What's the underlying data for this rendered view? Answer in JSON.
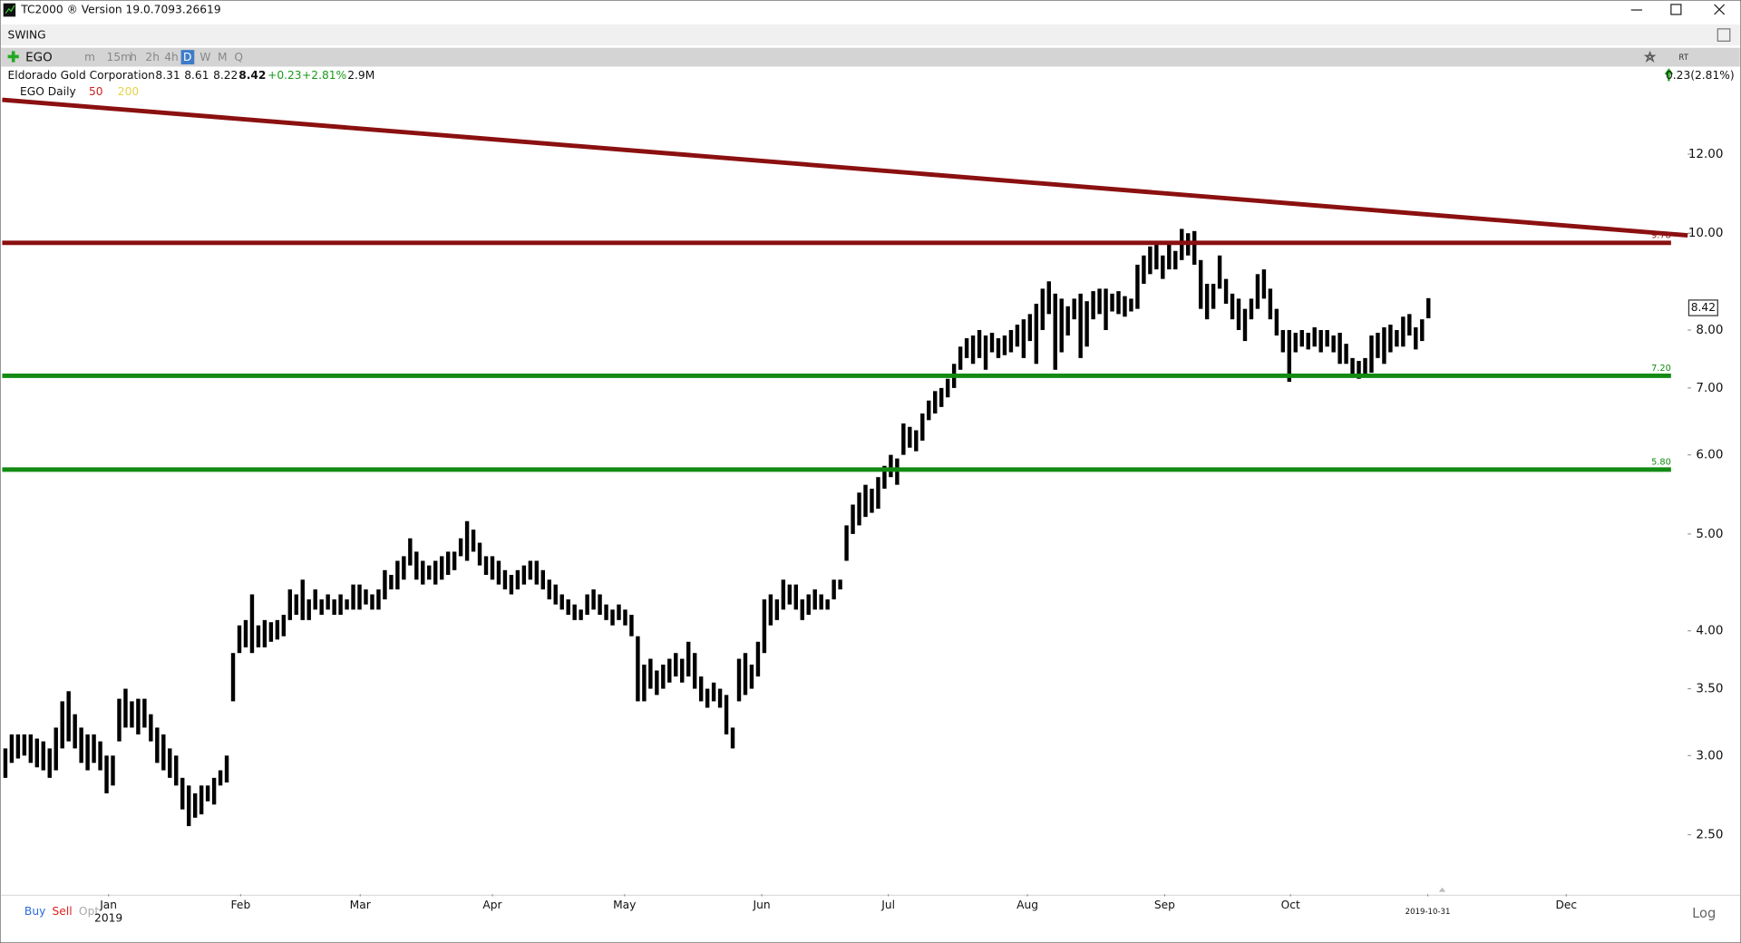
{
  "window": {
    "title": "TC2000 ® Version 19.0.7093.26619",
    "tab": "SWING",
    "symbol": "EGO",
    "timeframes": [
      "m",
      "15m",
      "h",
      "2h",
      "4h",
      "D",
      "W",
      "M",
      "Q"
    ],
    "company": "Eldorado Gold Corporation",
    "quote": [
      "8.31",
      "8.61",
      "8.22",
      "8.42",
      "+0.23",
      "+2.81%",
      "2.9M"
    ],
    "change": "0.23(2.81%)",
    "study": "EGO Daily",
    "averages": [
      "50",
      "200"
    ],
    "rt": "RT",
    "orders": [
      "Buy",
      "Sell",
      "Opt"
    ],
    "scale": "Log"
  },
  "chart_data": {
    "type": "ohlc",
    "color": "#000000",
    "log": true,
    "low": [
      2.85,
      2.95,
      2.98,
      3.0,
      2.95,
      2.92,
      2.9,
      2.85,
      2.9,
      3.05,
      3.1,
      3.05,
      2.95,
      2.9,
      2.95,
      2.9,
      2.75,
      2.8,
      3.1,
      3.2,
      3.2,
      3.15,
      3.2,
      3.1,
      2.95,
      2.9,
      2.85,
      2.8,
      2.65,
      2.55,
      2.6,
      2.62,
      2.7,
      2.68,
      2.8,
      2.82,
      3.4,
      3.8,
      3.85,
      3.8,
      3.85,
      3.85,
      3.9,
      3.92,
      3.95,
      4.1,
      4.15,
      4.1,
      4.1,
      4.2,
      4.15,
      4.2,
      4.15,
      4.15,
      4.2,
      4.2,
      4.2,
      4.25,
      4.2,
      4.2,
      4.3,
      4.4,
      4.4,
      4.5,
      4.65,
      4.5,
      4.45,
      4.5,
      4.45,
      4.5,
      4.55,
      4.6,
      4.75,
      4.7,
      4.8,
      4.65,
      4.55,
      4.5,
      4.45,
      4.4,
      4.35,
      4.4,
      4.45,
      4.5,
      4.45,
      4.4,
      4.3,
      4.25,
      4.2,
      4.15,
      4.1,
      4.1,
      4.15,
      4.2,
      4.15,
      4.1,
      4.05,
      4.1,
      4.05,
      3.95,
      3.4,
      3.4,
      3.5,
      3.45,
      3.5,
      3.55,
      3.6,
      3.55,
      3.6,
      3.5,
      3.4,
      3.35,
      3.4,
      3.35,
      3.15,
      3.05,
      3.4,
      3.45,
      3.5,
      3.6,
      3.8,
      4.05,
      4.1,
      4.2,
      4.25,
      4.2,
      4.1,
      4.15,
      4.2,
      4.2,
      4.2,
      4.3,
      4.4,
      4.7,
      5.0,
      5.1,
      5.2,
      5.25,
      5.3,
      5.55,
      5.7,
      5.6,
      6.0,
      6.1,
      6.05,
      6.2,
      6.5,
      6.6,
      6.7,
      6.85,
      7.0,
      7.3,
      7.5,
      7.4,
      7.5,
      7.3,
      7.6,
      7.5,
      7.55,
      7.6,
      7.7,
      7.5,
      7.8,
      7.4,
      8.0,
      8.3,
      7.3,
      7.6,
      7.9,
      8.2,
      7.5,
      7.7,
      8.2,
      8.3,
      8.0,
      8.35,
      8.3,
      8.25,
      8.35,
      8.4,
      8.9,
      9.1,
      9.2,
      9.0,
      9.2,
      9.2,
      9.4,
      9.5,
      9.3,
      8.4,
      8.2,
      8.4,
      8.8,
      8.5,
      8.2,
      8.0,
      7.8,
      8.2,
      8.4,
      8.6,
      8.2,
      7.9,
      7.6,
      7.1,
      7.6,
      7.7,
      7.65,
      7.7,
      7.6,
      7.7,
      7.6,
      7.4,
      7.4,
      7.2,
      7.15,
      7.2,
      7.25,
      7.5,
      7.4,
      7.6,
      7.7,
      7.7,
      7.9,
      7.65,
      7.8,
      8.22
    ],
    "high": [
      3.05,
      3.15,
      3.15,
      3.15,
      3.15,
      3.12,
      3.1,
      3.05,
      3.2,
      3.4,
      3.48,
      3.3,
      3.2,
      3.15,
      3.15,
      3.1,
      3.0,
      3.0,
      3.42,
      3.5,
      3.4,
      3.42,
      3.42,
      3.3,
      3.2,
      3.15,
      3.05,
      3.0,
      2.85,
      2.8,
      2.75,
      2.8,
      2.8,
      2.85,
      2.9,
      3.0,
      3.8,
      4.05,
      4.1,
      4.35,
      4.05,
      4.1,
      4.08,
      4.1,
      4.15,
      4.4,
      4.35,
      4.5,
      4.3,
      4.4,
      4.3,
      4.35,
      4.3,
      4.35,
      4.3,
      4.45,
      4.45,
      4.4,
      4.35,
      4.4,
      4.6,
      4.55,
      4.7,
      4.75,
      4.95,
      4.8,
      4.7,
      4.65,
      4.7,
      4.75,
      4.8,
      4.8,
      4.95,
      5.15,
      5.05,
      4.9,
      4.75,
      4.75,
      4.7,
      4.6,
      4.55,
      4.6,
      4.65,
      4.7,
      4.7,
      4.6,
      4.5,
      4.45,
      4.35,
      4.3,
      4.25,
      4.2,
      4.35,
      4.4,
      4.35,
      4.25,
      4.2,
      4.25,
      4.2,
      4.15,
      3.95,
      3.7,
      3.75,
      3.65,
      3.7,
      3.75,
      3.8,
      3.75,
      3.9,
      3.8,
      3.6,
      3.5,
      3.55,
      3.5,
      3.45,
      3.2,
      3.75,
      3.8,
      3.7,
      3.9,
      4.3,
      4.35,
      4.3,
      4.5,
      4.45,
      4.45,
      4.3,
      4.35,
      4.4,
      4.35,
      4.3,
      4.5,
      4.5,
      5.1,
      5.35,
      5.5,
      5.6,
      5.55,
      5.7,
      5.85,
      6.0,
      5.95,
      6.45,
      6.4,
      6.35,
      6.6,
      6.8,
      6.95,
      7.0,
      7.15,
      7.4,
      7.7,
      7.85,
      7.9,
      8.0,
      7.9,
      7.95,
      7.85,
      7.9,
      8.0,
      8.1,
      8.2,
      8.3,
      8.5,
      8.8,
      8.95,
      8.7,
      8.6,
      8.45,
      8.6,
      8.7,
      8.55,
      8.75,
      8.8,
      8.8,
      8.7,
      8.75,
      8.65,
      8.6,
      9.3,
      9.5,
      9.7,
      9.75,
      9.5,
      9.8,
      9.6,
      10.1,
      10.0,
      10.05,
      9.4,
      8.9,
      8.9,
      9.5,
      9.0,
      8.7,
      8.6,
      8.4,
      8.6,
      9.1,
      9.2,
      8.8,
      8.4,
      8.0,
      8.0,
      7.95,
      8.0,
      7.95,
      8.05,
      8.0,
      8.0,
      7.9,
      7.95,
      7.75,
      7.5,
      7.45,
      7.5,
      7.9,
      7.95,
      8.05,
      8.1,
      8.0,
      8.25,
      8.3,
      8.05,
      8.2,
      8.61
    ],
    "xlim": [
      -0.5,
      266
    ],
    "xticks": [
      {
        "value": 16.3,
        "label": "Jan"
      },
      {
        "value": 37.2,
        "label": "Feb"
      },
      {
        "value": 56.1,
        "label": "Mar"
      },
      {
        "value": 77,
        "label": "Apr"
      },
      {
        "value": 97.9,
        "label": "May"
      },
      {
        "value": 119.6,
        "label": "Jun"
      },
      {
        "value": 139.6,
        "label": "Jul"
      },
      {
        "value": 161.6,
        "label": "Aug"
      },
      {
        "value": 183.3,
        "label": "Sep"
      },
      {
        "value": 203.2,
        "label": "Oct"
      },
      {
        "value": 224.9,
        "label": "2019-10-31"
      },
      {
        "value": 246.8,
        "label": "Dec"
      }
    ],
    "year_label": "2019",
    "ylim": [
      2.18,
      13.7
    ],
    "yticks": [
      {
        "value": 2.5,
        "label": "2.50"
      },
      {
        "value": 3,
        "label": "3.00"
      },
      {
        "value": 3.5,
        "label": "3.50"
      },
      {
        "value": 4,
        "label": "4.00"
      },
      {
        "value": 5,
        "label": "5.00"
      },
      {
        "value": 6,
        "label": "6.00"
      },
      {
        "value": 7,
        "label": "7.00"
      },
      {
        "value": 8,
        "label": "8.00"
      },
      {
        "value": 10,
        "label": "10.00"
      },
      {
        "value": 12,
        "label": "12.00"
      }
    ],
    "trendline": {
      "x": [
        -0.5,
        266
      ],
      "y": [
        13.6,
        9.95
      ],
      "color": "#8b1010"
    },
    "levels": [
      {
        "value": 9.78,
        "label": "9.78",
        "color": "#8b1010"
      },
      {
        "value": 7.2,
        "label": "7.20",
        "color": "#138a13"
      },
      {
        "value": 5.8,
        "label": "5.80",
        "color": "#138a13"
      }
    ],
    "last": 8.42
  }
}
